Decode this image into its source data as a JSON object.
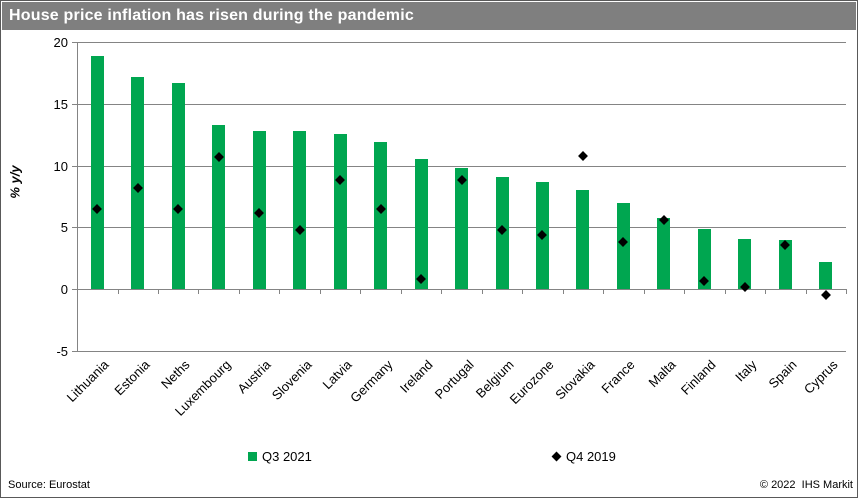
{
  "header": {
    "title": "House price inflation has risen during the pandemic"
  },
  "chart_data": {
    "type": "bar",
    "title": "House price inflation has risen during the pandemic",
    "xlabel": "",
    "ylabel": "% y/y",
    "ylim": [
      -5,
      20
    ],
    "yticks": [
      20,
      15,
      10,
      5,
      0,
      -5
    ],
    "grid": true,
    "legend_position": "bottom",
    "categories": [
      "Lithuania",
      "Estonia",
      "Neths",
      "Luxembourg",
      "Austria",
      "Slovenia",
      "Latvia",
      "Germany",
      "Ireland",
      "Portugal",
      "Belgium",
      "Eurozone",
      "Slovakia",
      "France",
      "Malta",
      "Finland",
      "Italy",
      "Spain",
      "Cyprus"
    ],
    "series": [
      {
        "name": "Q3 2021",
        "type": "bar",
        "color": "#00a650",
        "values": [
          18.9,
          17.2,
          16.7,
          13.3,
          12.8,
          12.8,
          12.6,
          11.9,
          10.5,
          9.8,
          9.1,
          8.7,
          8.0,
          7.0,
          5.8,
          4.9,
          4.1,
          4.0,
          2.2
        ]
      },
      {
        "name": "Q4 2019",
        "type": "scatter",
        "marker": "diamond",
        "color": "#000000",
        "values": [
          6.5,
          8.2,
          6.5,
          10.7,
          6.2,
          4.8,
          8.8,
          6.5,
          0.8,
          8.8,
          4.8,
          4.4,
          10.8,
          3.8,
          5.6,
          0.7,
          0.2,
          3.6,
          -0.5
        ]
      }
    ]
  },
  "footer": {
    "source": "Source: Eurostat",
    "copyright": "© 2022  IHS Markit"
  },
  "colors": {
    "header_bg": "#7f7f7f",
    "title_text": "#ffffff",
    "bar_green": "#00a650",
    "diamond_black": "#000000",
    "gridline": "#848484",
    "frame_border": "#595959"
  }
}
